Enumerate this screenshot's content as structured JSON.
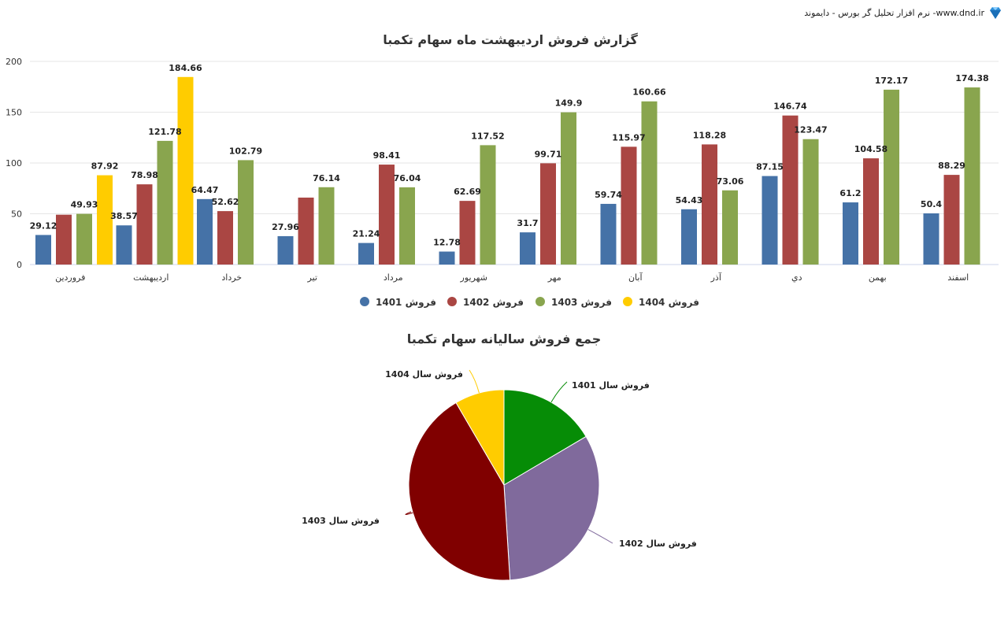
{
  "brand": {
    "text": "نرم افزار تحلیل گر بورس - دایموند -www.dnd.ir",
    "logo": "diamond-logo-icon"
  },
  "chart_data": [
    {
      "type": "bar",
      "title": "گزارش فروش اردیبهشت ماه سهام تکمبا",
      "categories": [
        "فروردین",
        "اردیبهشت",
        "خرداد",
        "تیر",
        "مرداد",
        "شهریور",
        "مهر",
        "آبان",
        "آذر",
        "دي",
        "بهمن",
        "اسفند"
      ],
      "series": [
        {
          "name": "فروش 1401",
          "color": "#4572a7",
          "values": [
            29.12,
            38.57,
            64.47,
            27.96,
            21.24,
            12.78,
            31.7,
            59.74,
            54.43,
            87.15,
            61.2,
            50.4
          ]
        },
        {
          "name": "فروش 1402",
          "color": "#aa4643",
          "values": [
            49.08,
            78.98,
            52.62,
            65.92,
            98.41,
            62.69,
            99.71,
            115.97,
            118.28,
            146.74,
            104.58,
            88.29
          ]
        },
        {
          "name": "فروش 1403",
          "color": "#89a54e",
          "values": [
            49.93,
            121.78,
            102.79,
            76.14,
            76.04,
            117.52,
            149.9,
            160.66,
            73.06,
            123.47,
            172.17,
            174.38
          ]
        },
        {
          "name": "فروش 1404",
          "color": "#ffcc00",
          "values": [
            87.92,
            184.66,
            null,
            null,
            null,
            null,
            null,
            null,
            null,
            null,
            null,
            null
          ]
        }
      ],
      "data_labels": [
        [
          "29.12",
          "38.57",
          "64.47",
          "27.96",
          "21.24",
          "12.78",
          "31.7",
          "59.74",
          "54.43",
          "87.15",
          "61.2",
          "50.4"
        ],
        [
          "",
          "78.98",
          "52.62",
          "",
          "98.41",
          "62.69",
          "99.71",
          "115.97",
          "118.28",
          "146.74",
          "104.58",
          "88.29"
        ],
        [
          "49.93",
          "121.78",
          "102.79",
          "76.14",
          "76.04",
          "117.52",
          "149.9",
          "160.66",
          "73.06",
          "123.47",
          "172.17",
          "174.38"
        ],
        [
          "87.92",
          "184.66",
          "",
          "",
          "",
          "",
          "",
          "",
          "",
          "",
          "",
          ""
        ]
      ],
      "ylim": [
        0,
        200
      ],
      "yticks": [
        0,
        50,
        100,
        150,
        200
      ],
      "grid": true,
      "legend": "bottom"
    },
    {
      "type": "pie",
      "title": "جمع فروش سالیانه سهام تکمبا",
      "slices": [
        {
          "label": "فروش سال 1401",
          "value": 16.5,
          "color": "#068c06"
        },
        {
          "label": "فروش سال 1402",
          "value": 32.5,
          "color": "#806a9c"
        },
        {
          "label": "فروش سال 1403",
          "value": 42.6,
          "color": "#800000"
        },
        {
          "label": "فروش سال 1404",
          "value": 8.4,
          "color": "#ffcc00"
        }
      ]
    }
  ]
}
